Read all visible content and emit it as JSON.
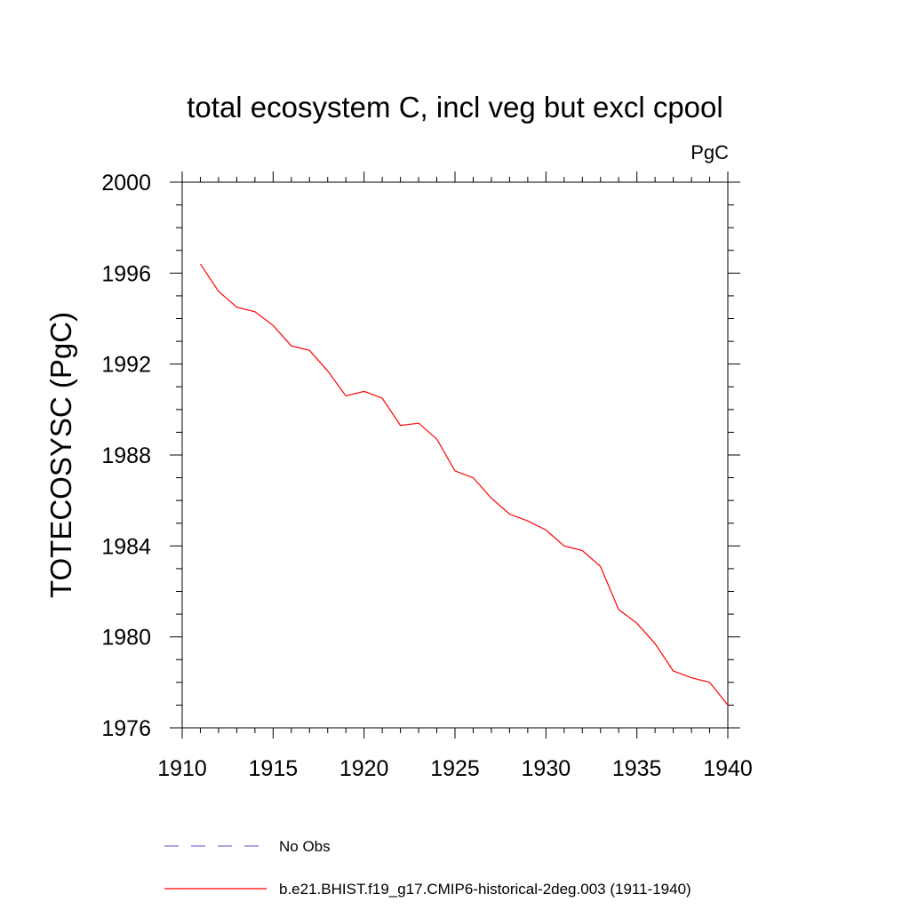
{
  "chart_data": {
    "type": "line",
    "title": "total ecosystem C, incl veg but excl cpool",
    "units": "PgC",
    "ylabel": "TOTECOSYSC  (PgC)",
    "xlabel": "",
    "xlim": [
      1910,
      1940
    ],
    "ylim": [
      1976,
      2000
    ],
    "x_ticks": [
      1910,
      1915,
      1920,
      1925,
      1930,
      1935,
      1940
    ],
    "y_ticks": [
      1976,
      1980,
      1984,
      1988,
      1992,
      1996,
      2000
    ],
    "grid": false,
    "legend_position": "bottom",
    "series": [
      {
        "name": "b.e21.BHIST.f19_g17.CMIP6-historical-2deg.003 (1911-1940)",
        "color": "#ff0000",
        "style": "solid",
        "x": [
          1911,
          1912,
          1913,
          1914,
          1915,
          1916,
          1917,
          1918,
          1919,
          1920,
          1921,
          1922,
          1923,
          1924,
          1925,
          1926,
          1927,
          1928,
          1929,
          1930,
          1931,
          1932,
          1933,
          1934,
          1935,
          1936,
          1937,
          1938,
          1939,
          1940
        ],
        "y": [
          1996.4,
          1995.2,
          1994.5,
          1994.3,
          1993.7,
          1992.8,
          1992.6,
          1991.7,
          1990.6,
          1990.8,
          1990.5,
          1989.3,
          1989.4,
          1988.7,
          1987.3,
          1987.0,
          1986.1,
          1985.4,
          1985.1,
          1984.7,
          1984.0,
          1983.8,
          1983.1,
          1981.2,
          1980.6,
          1979.7,
          1978.5,
          1978.2,
          1978.0,
          1977.0
        ]
      }
    ],
    "legend": [
      {
        "label": "No Obs",
        "color": "#7b6fd6",
        "style": "dashed"
      },
      {
        "label": "b.e21.BHIST.f19_g17.CMIP6-historical-2deg.003 (1911-1940)",
        "color": "#ff0000",
        "style": "solid"
      }
    ]
  }
}
